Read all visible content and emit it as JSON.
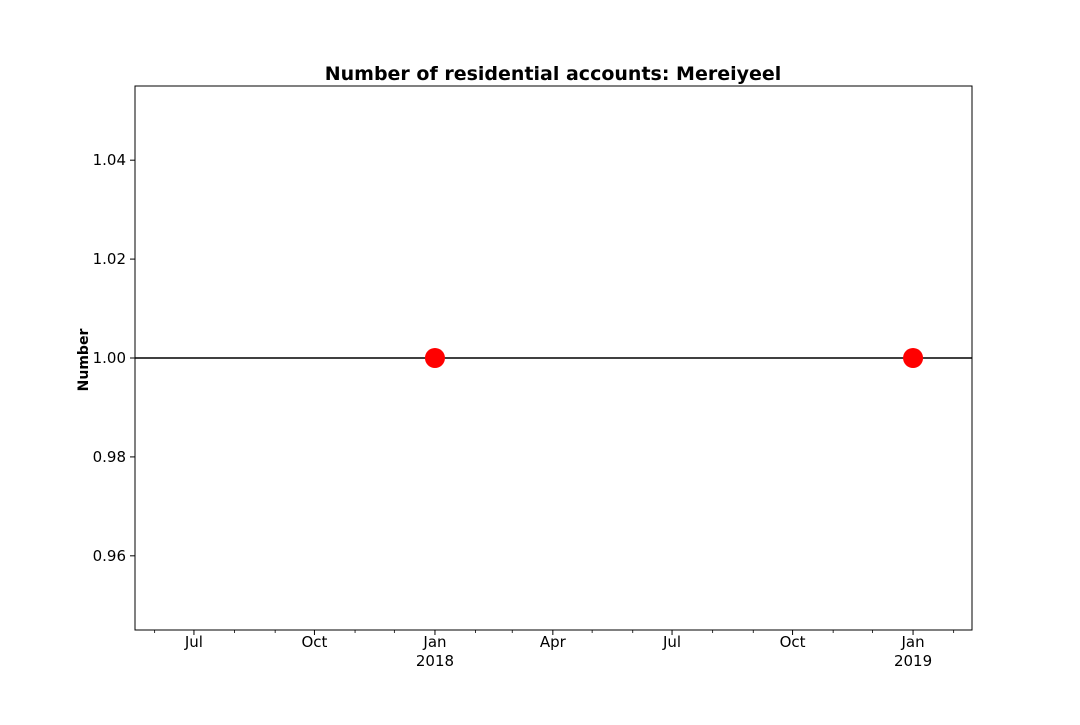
{
  "chart_data": {
    "type": "line",
    "title": "Number of residential accounts: Mereiyeel",
    "xlabel": "",
    "ylabel": "Number",
    "x_type": "date",
    "xlim": [
      "2017-05-17",
      "2019-02-15"
    ],
    "ylim": [
      0.945,
      1.055
    ],
    "x_ticks": [
      {
        "date": "2017-07-01",
        "label": "Jul",
        "sublabel": ""
      },
      {
        "date": "2017-10-01",
        "label": "Oct",
        "sublabel": ""
      },
      {
        "date": "2018-01-01",
        "label": "Jan",
        "sublabel": "2018"
      },
      {
        "date": "2018-04-01",
        "label": "Apr",
        "sublabel": ""
      },
      {
        "date": "2018-07-01",
        "label": "Jul",
        "sublabel": ""
      },
      {
        "date": "2018-10-01",
        "label": "Oct",
        "sublabel": ""
      },
      {
        "date": "2019-01-01",
        "label": "Jan",
        "sublabel": "2019"
      }
    ],
    "y_ticks": [
      "0.96",
      "0.98",
      "1.00",
      "1.02",
      "1.04"
    ],
    "grid": false,
    "series": [
      {
        "color": "#ff0000",
        "marker": "circle",
        "points": [
          {
            "x": "2018-01-01",
            "y": 1.0
          },
          {
            "x": "2019-01-01",
            "y": 1.0
          }
        ]
      }
    ],
    "reference_lines": [
      {
        "axis": "y",
        "value": 1.0,
        "color": "#000000"
      }
    ]
  }
}
